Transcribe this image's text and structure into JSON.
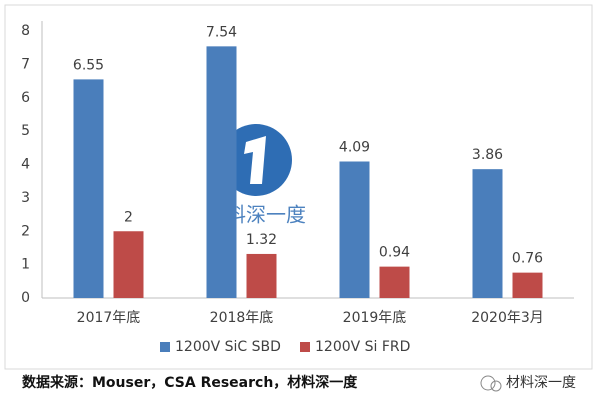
{
  "chart_data": {
    "type": "bar",
    "categories": [
      "2017年底",
      "2018年底",
      "2019年底",
      "2020年3月"
    ],
    "series": [
      {
        "name": "1200V SiC SBD",
        "color": "#4a7ebb",
        "values": [
          6.55,
          7.54,
          4.09,
          3.86
        ]
      },
      {
        "name": "1200V Si FRD",
        "color": "#be4b48",
        "values": [
          2,
          1.32,
          0.94,
          0.76
        ]
      }
    ],
    "ylim": [
      0,
      8
    ],
    "yticks": [
      0,
      1,
      2,
      3,
      4,
      5,
      6,
      7,
      8
    ],
    "grid": false,
    "legend": "bottom",
    "watermark": "材料深一度",
    "source": "数据来源：Mouser，CSA Research，材料深一度"
  },
  "footer": {
    "account": "材料深一度"
  }
}
